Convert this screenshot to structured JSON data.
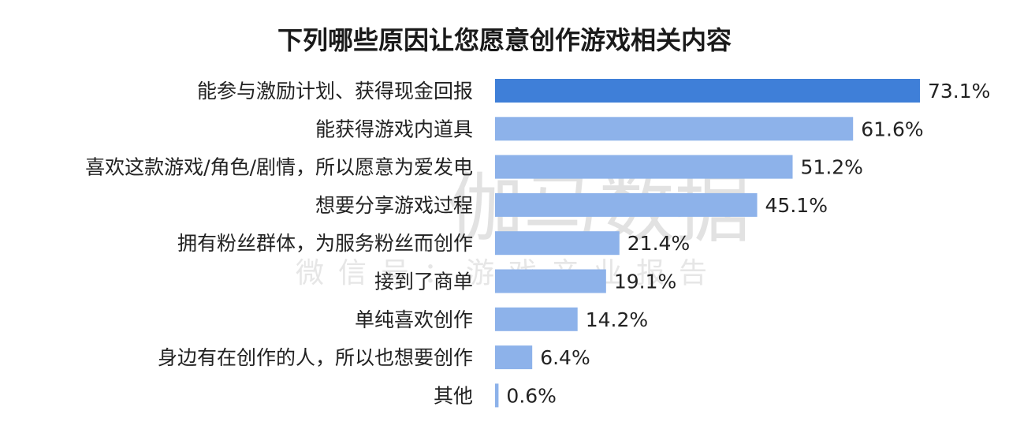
{
  "watermark": {
    "main": "伽马数据",
    "sub": "微信号：游戏产业报告"
  },
  "colors": {
    "highlight_bar": "#3f7fd8",
    "bar": "#8db2ea",
    "text": "#222222"
  },
  "chart_data": {
    "type": "bar",
    "orientation": "horizontal",
    "title": "下列哪些原因让您愿意创作游戏相关内容",
    "categories": [
      "能参与激励计划、获得现金回报",
      "能获得游戏内道具",
      "喜欢这款游戏/角色/剧情，所以愿意为爱发电",
      "想要分享游戏过程",
      "拥有粉丝群体，为服务粉丝而创作",
      "接到了商单",
      "单纯喜欢创作",
      "身边有在创作的人，所以也想要创作",
      "其他"
    ],
    "values": [
      73.1,
      61.6,
      51.2,
      45.1,
      21.4,
      19.1,
      14.2,
      6.4,
      0.6
    ],
    "value_labels": [
      "73.1%",
      "61.6%",
      "51.2%",
      "45.1%",
      "21.4%",
      "19.1%",
      "14.2%",
      "6.4%",
      "0.6%"
    ],
    "unit": "%",
    "highlight_index": 0,
    "xlabel": "",
    "ylabel": "",
    "xlim": [
      0,
      73.1
    ],
    "grid": false,
    "legend": "none"
  }
}
